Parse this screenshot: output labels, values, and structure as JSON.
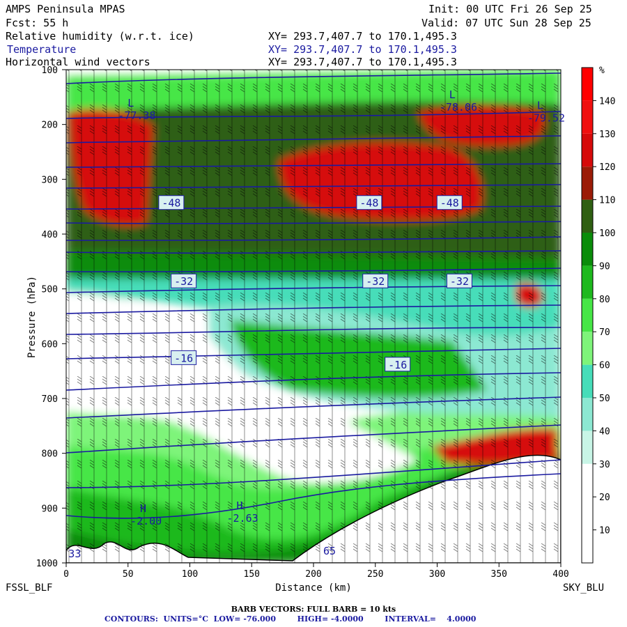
{
  "header": {
    "model": "AMPS Peninsula MPAS",
    "forecast": "Fcst:   55 h",
    "init": "Init: 00 UTC Fri 26 Sep 25",
    "valid": "Valid: 07 UTC Sun 28 Sep 25",
    "fields": [
      {
        "name": "Relative humidity (w.r.t. ice)",
        "xy": "XY= 293.7,407.7 to 170.1,495.3",
        "color": "#000000"
      },
      {
        "name": "Temperature",
        "xy": "XY= 293.7,407.7 to 170.1,495.3",
        "color": "#1a1aa0"
      },
      {
        "name": "Horizontal wind vectors",
        "xy": "XY= 293.7,407.7 to 170.1,495.3",
        "color": "#000000"
      }
    ]
  },
  "footer": {
    "barb": "BARB VECTORS:  FULL BARB = 10 kts",
    "contours": "CONTOURS:  UNITS=°C  LOW= -76.000        HIGH= -4.0000        INTERVAL=    4.0000"
  },
  "chart_data": {
    "type": "heatmap",
    "title": "AMPS Peninsula MPAS",
    "xlabel": "Distance (km)",
    "ylabel": "Pressure (hPa)",
    "xlim": [
      0,
      400
    ],
    "ylim": [
      1000,
      100
    ],
    "x_ticks": [
      "0",
      "50",
      "100",
      "150",
      "200",
      "250",
      "300",
      "350",
      "400"
    ],
    "y_ticks": [
      "100",
      "200",
      "300",
      "400",
      "500",
      "600",
      "700",
      "800",
      "900",
      "1000"
    ],
    "endpoint_left": "FSSL_BLF",
    "endpoint_right": "SKY_BLU",
    "colorbar": {
      "unit": "%",
      "levels": [
        0,
        10,
        20,
        30,
        40,
        50,
        60,
        70,
        80,
        90,
        100,
        110,
        120,
        130,
        140,
        150
      ],
      "labels": [
        "10",
        "20",
        "30",
        "40",
        "50",
        "60",
        "70",
        "80",
        "90",
        "100",
        "110",
        "120",
        "130",
        "140"
      ],
      "colors": [
        "#ffffff",
        "#ffffff",
        "#ffffff",
        "#c8f5e6",
        "#8ce8d2",
        "#46ddb9",
        "#7ef47a",
        "#46e646",
        "#1eb91e",
        "#0a8c0a",
        "#2f5f12",
        "#9b1b07",
        "#d60a0a",
        "#f00f0f",
        "#ff0000"
      ]
    },
    "temperature_contours": {
      "units": "°C",
      "low": -76.0,
      "high": -4.0,
      "interval": 4.0,
      "labels": [
        {
          "text": "-48",
          "x": 85,
          "p": 345
        },
        {
          "text": "-48",
          "x": 245,
          "p": 345
        },
        {
          "text": "-48",
          "x": 310,
          "p": 345
        },
        {
          "text": "-32",
          "x": 95,
          "p": 488
        },
        {
          "text": "-32",
          "x": 250,
          "p": 488
        },
        {
          "text": "-32",
          "x": 318,
          "p": 488
        },
        {
          "text": "-16",
          "x": 95,
          "p": 628
        },
        {
          "text": "-16",
          "x": 268,
          "p": 640
        }
      ],
      "extrema": [
        {
          "type": "L",
          "value": "-77.38",
          "x": 52,
          "p": 190
        },
        {
          "type": "L",
          "value": "-78.06",
          "x": 312,
          "p": 175
        },
        {
          "type": "L",
          "value": "-79.52",
          "x": 383,
          "p": 195
        },
        {
          "type": "H",
          "value": "-2.00",
          "x": 62,
          "p": 930
        },
        {
          "type": "H",
          "value": "-2.63",
          "x": 140,
          "p": 925
        },
        {
          "type": "",
          "value": "33",
          "x": 12,
          "p": 990
        },
        {
          "type": "",
          "value": "65",
          "x": 218,
          "p": 985
        }
      ]
    },
    "wind_barbs": {
      "full_barb_kts": 10
    }
  }
}
